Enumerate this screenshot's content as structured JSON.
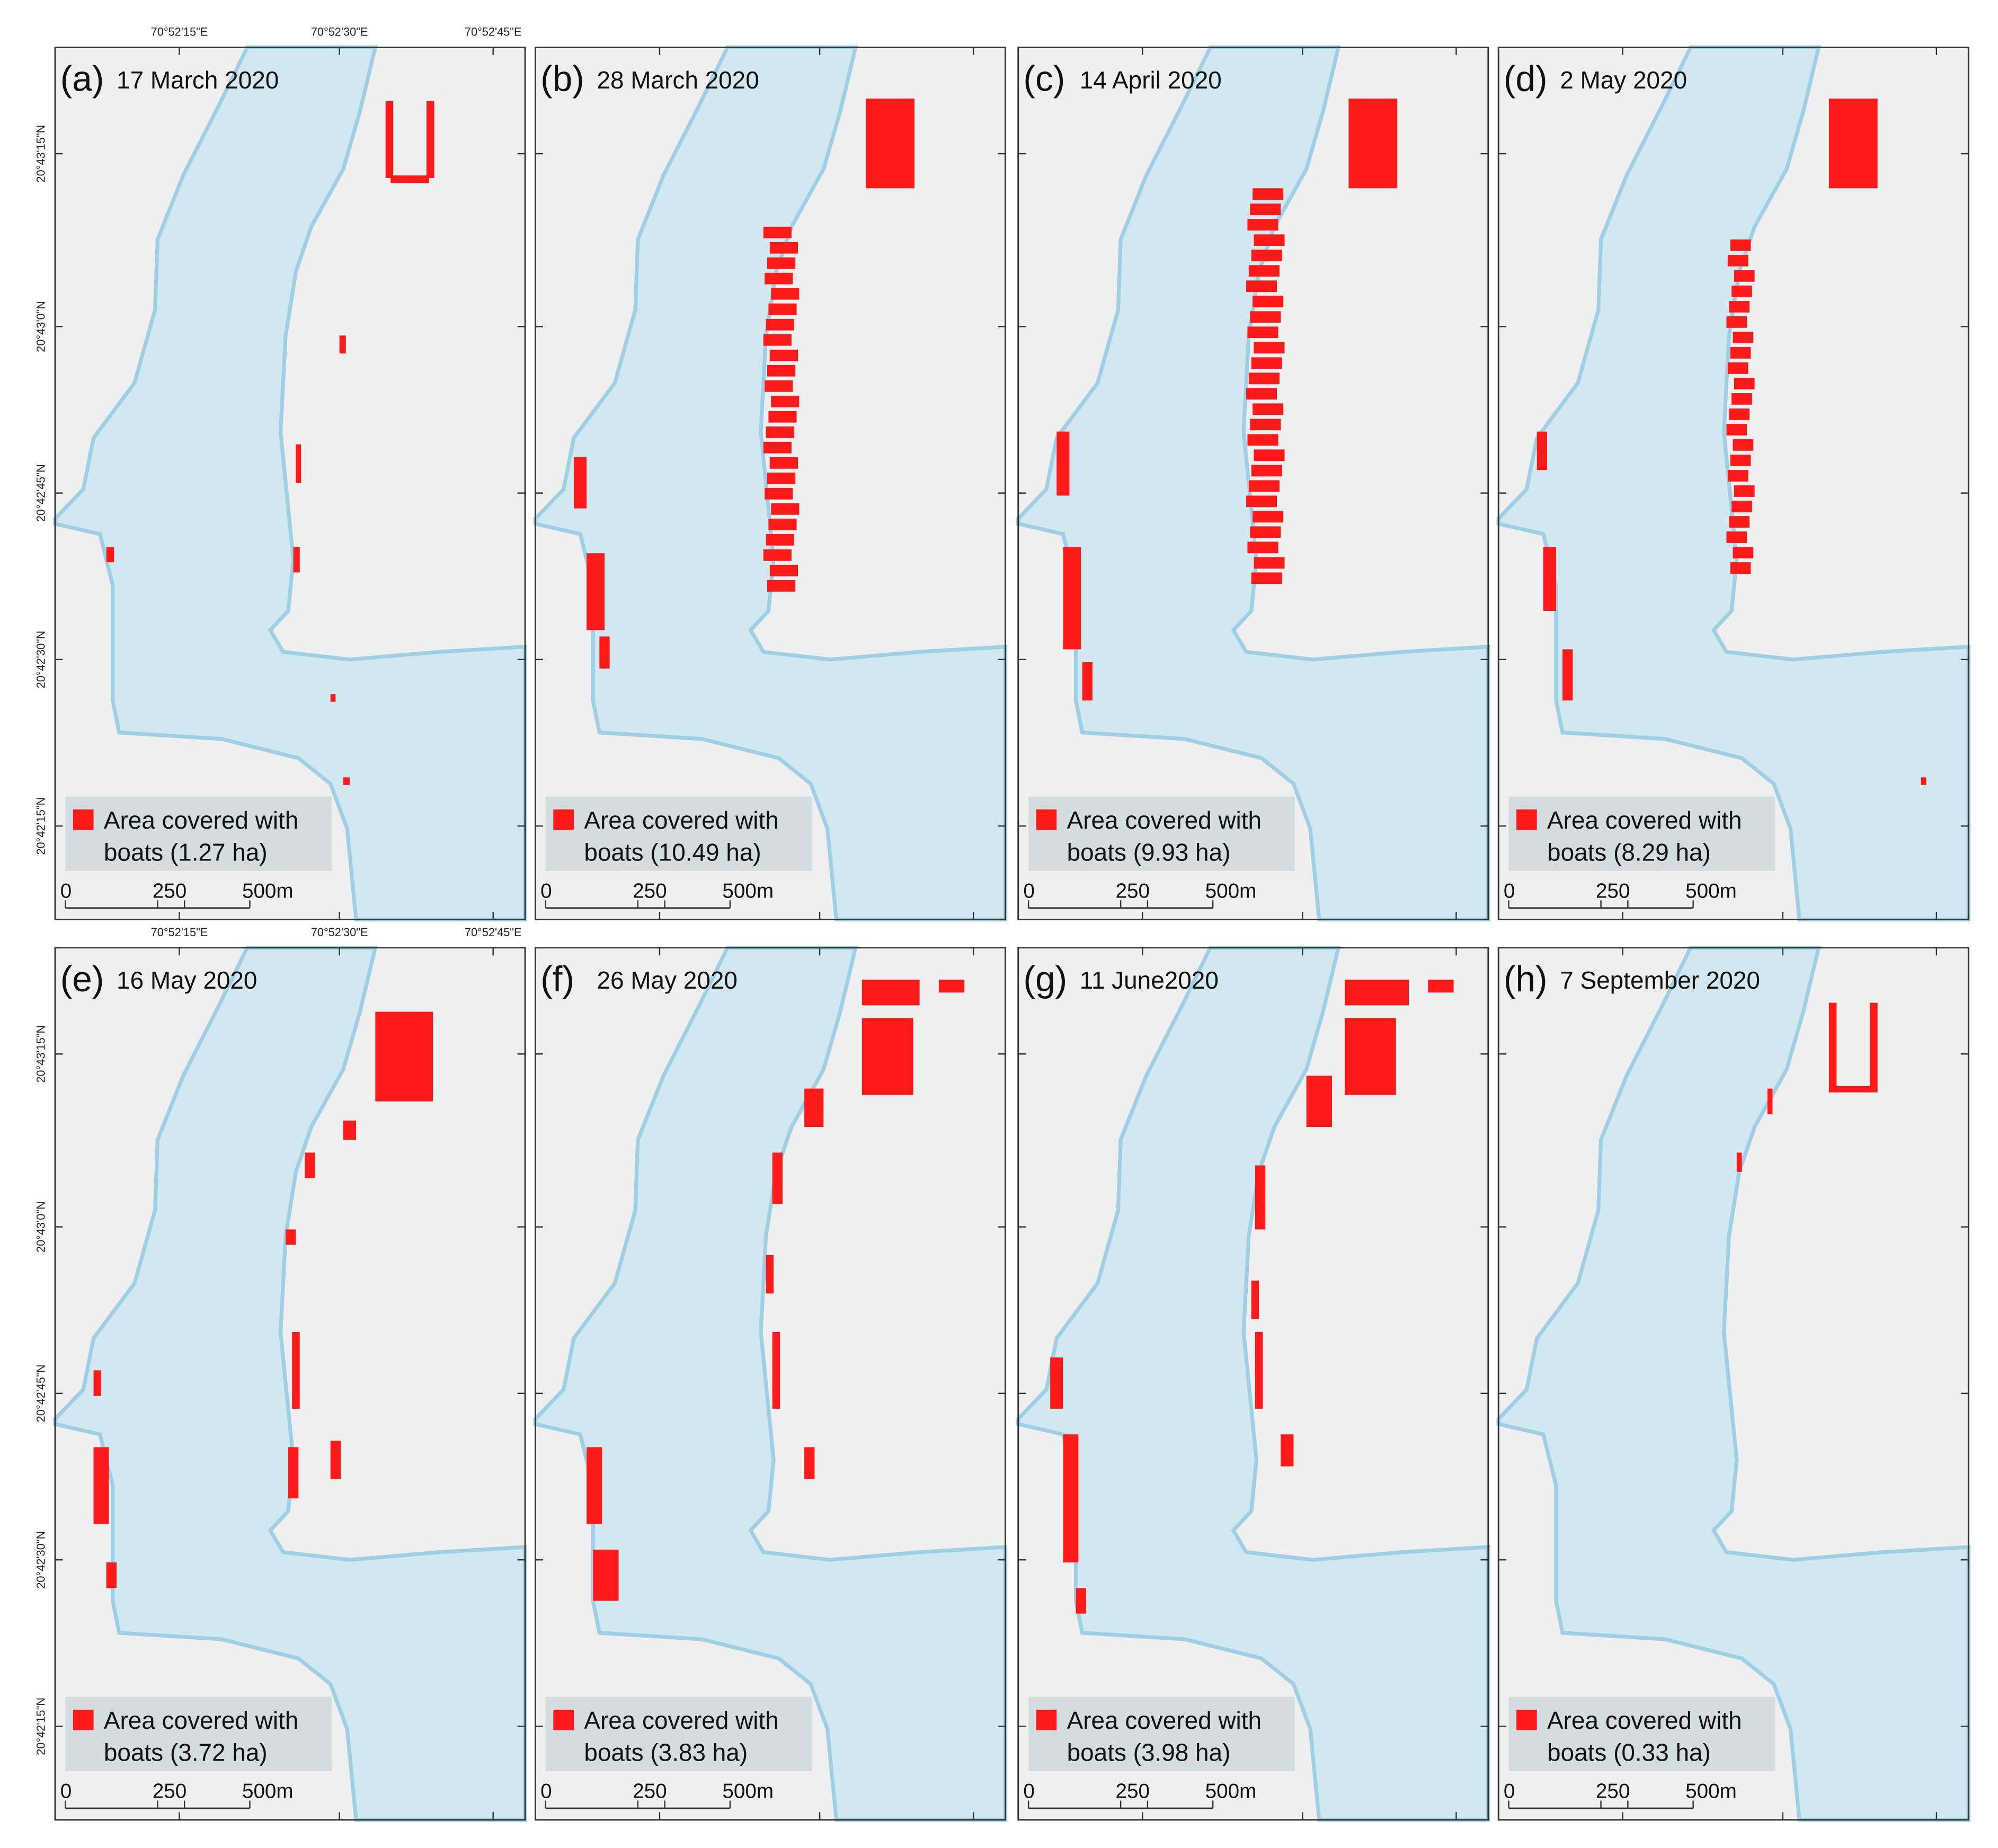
{
  "figure": {
    "lon_labels": [
      "70°52'15\"E",
      "70°52'30\"E",
      "70°52'45\"E"
    ],
    "lat_labels": [
      "20°43'15\"N",
      "20°43'0\"N",
      "20°42'45\"N",
      "20°42'30\"N",
      "20°42'15\"N"
    ],
    "legend_text": "Area covered with",
    "scale_labels": [
      "0",
      "250",
      "500m"
    ],
    "panels": [
      {
        "label": "(a)",
        "date": "17 March 2020",
        "legend_area": "boats (1.27 ha)"
      },
      {
        "label": "(b)",
        "date": "28 March 2020",
        "legend_area": "boats (10.49 ha)"
      },
      {
        "label": "(c)",
        "date": "14 April 2020",
        "legend_area": "boats (9.93 ha)"
      },
      {
        "label": "(d)",
        "date": "2 May 2020",
        "legend_area": "boats (8.29 ha)"
      },
      {
        "label": "(e)",
        "date": "16 May 2020",
        "legend_area": "boats (3.72 ha)"
      },
      {
        "label": "(f)",
        "date": "26 May 2020",
        "legend_area": "boats (3.83 ha)"
      },
      {
        "label": "(g)",
        "date": "11 June2020",
        "legend_area": "boats (3.98 ha)"
      },
      {
        "label": "(h)",
        "date": "7 September 2020",
        "legend_area": "boats (0.33 ha)"
      }
    ]
  }
}
